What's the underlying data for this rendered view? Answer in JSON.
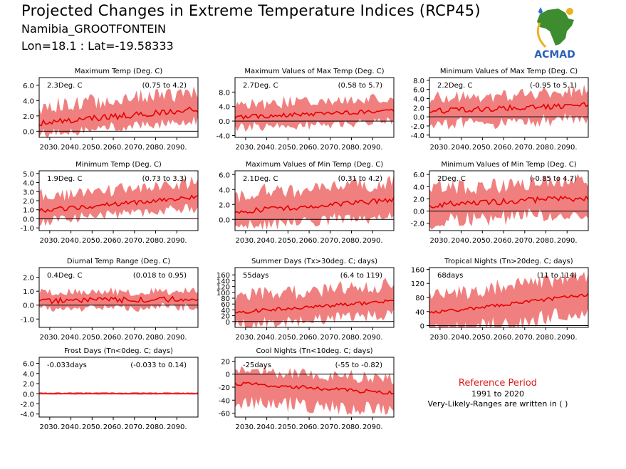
{
  "header": {
    "title": "Projected Changes in Extreme Temperature Indices (RCP45)",
    "location": "Namibia_GROOTFONTEIN",
    "coords": "Lon=18.1 : Lat=-19.58333"
  },
  "logo": {
    "text": "ACMAD",
    "icon": "africa-map-logo"
  },
  "reference": {
    "title": "Reference Period",
    "years": "1991 to 2020",
    "note": "Very-Likely-Ranges are written in ( )"
  },
  "colors": {
    "band": "#f08080",
    "line": "#e60000",
    "zero": "#000000",
    "reference_title": "#d81e1e"
  },
  "chart_data": [
    {
      "id": "max-temp",
      "type": "area",
      "title": "Maximum Temp (Deg. C)",
      "value": "2.3Deg. C",
      "range": "(0.75 to 4.2)",
      "x_range": [
        2025,
        2100
      ],
      "x_ticks": [
        "2030.",
        "2040.",
        "2050.",
        "2060.",
        "2070.",
        "2080.",
        "2090."
      ],
      "ylim": [
        -0.8,
        7.0
      ],
      "y_ticks": [
        "0.0",
        "2.0",
        "4.0",
        "6.0"
      ],
      "start": 1.0,
      "end": 2.9,
      "upper_offset": 2.2,
      "lower_offset": 1.4,
      "noise": 0.4
    },
    {
      "id": "max-of-max",
      "type": "area",
      "title": "Maximum Values of Max Temp (Deg. C)",
      "value": "2.7Deg. C",
      "range": "(0.58 to 5.7)",
      "x_range": [
        2025,
        2100
      ],
      "x_ticks": [
        "2030.",
        "2040.",
        "2050.",
        "2060.",
        "2070.",
        "2080.",
        "2090."
      ],
      "ylim": [
        -4.5,
        12.0
      ],
      "y_ticks": [
        "-4.0",
        "0.0",
        "4.0",
        "8.0"
      ],
      "start": 1.0,
      "end": 3.0,
      "upper_offset": 3.5,
      "lower_offset": 3.0,
      "noise": 0.6
    },
    {
      "id": "min-of-max",
      "type": "area",
      "title": "Minimum Values of Max Temp (Deg. C)",
      "value": "2.2Deg. C",
      "range": "(-0.95 to 5.1)",
      "x_range": [
        2025,
        2100
      ],
      "x_ticks": [
        "2030.",
        "2040.",
        "2050.",
        "2060.",
        "2070.",
        "2080.",
        "2090."
      ],
      "ylim": [
        -4.5,
        8.6
      ],
      "y_ticks": [
        "-4.0",
        "-2.0",
        "0.0",
        "2.0",
        "4.0",
        "6.0",
        "8.0"
      ],
      "start": 1.2,
      "end": 2.6,
      "upper_offset": 3.0,
      "lower_offset": 3.0,
      "noise": 0.6
    },
    {
      "id": "min-temp",
      "type": "area",
      "title": "Minimum Temp (Deg. C)",
      "value": "1.9Deg. C",
      "range": "(0.73 to 3.3)",
      "x_range": [
        2025,
        2100
      ],
      "x_ticks": [
        "2030.",
        "2040.",
        "2050.",
        "2060.",
        "2070.",
        "2080.",
        "2090."
      ],
      "ylim": [
        -1.3,
        5.3
      ],
      "y_ticks": [
        "-1.0",
        "0.0",
        "1.0",
        "2.0",
        "3.0",
        "4.0",
        "5.0"
      ],
      "start": 0.9,
      "end": 2.4,
      "upper_offset": 1.6,
      "lower_offset": 1.2,
      "noise": 0.25
    },
    {
      "id": "max-of-min",
      "type": "area",
      "title": "Maximum Values of Min Temp (Deg. C)",
      "value": "2.1Deg. C",
      "range": "(0.31 to 4.2)",
      "x_range": [
        2025,
        2100
      ],
      "x_ticks": [
        "2030.",
        "2040.",
        "2050.",
        "2060.",
        "2070.",
        "2080.",
        "2090."
      ],
      "ylim": [
        -1.5,
        6.5
      ],
      "y_ticks": [
        "0.0",
        "2.0",
        "4.0",
        "6.0"
      ],
      "start": 1.0,
      "end": 2.6,
      "upper_offset": 2.3,
      "lower_offset": 2.0,
      "noise": 0.35
    },
    {
      "id": "min-of-min",
      "type": "area",
      "title": "Minimum Values of Min Temp (Deg. C)",
      "value": "2Deg. C",
      "range": "(-0.85 to 4.7)",
      "x_range": [
        2025,
        2100
      ],
      "x_ticks": [
        "2030.",
        "2040.",
        "2050.",
        "2060.",
        "2070.",
        "2080.",
        "2090."
      ],
      "ylim": [
        -3.2,
        6.6
      ],
      "y_ticks": [
        "-2.0",
        "0.0",
        "2.0",
        "4.0",
        "6.0"
      ],
      "start": 1.0,
      "end": 2.2,
      "upper_offset": 2.8,
      "lower_offset": 2.7,
      "noise": 0.5
    },
    {
      "id": "dtr",
      "type": "area",
      "title": "Diurnal Temp Range (Deg. C)",
      "value": "0.4Deg. C",
      "range": "(0.018 to 0.95)",
      "x_range": [
        2025,
        2100
      ],
      "x_ticks": [
        "2030.",
        "2040.",
        "2050.",
        "2060.",
        "2070.",
        "2080.",
        "2090."
      ],
      "ylim": [
        -1.6,
        2.7
      ],
      "y_ticks": [
        "-1.0",
        "0.0",
        "1.0",
        "2.0"
      ],
      "start": 0.3,
      "end": 0.45,
      "upper_offset": 0.6,
      "lower_offset": 0.55,
      "noise": 0.2
    },
    {
      "id": "summer-days",
      "type": "area",
      "title": "Summer Days (Tx>30deg. C; days)",
      "value": "55days",
      "range": "(6.4 to 119)",
      "x_range": [
        2025,
        2100
      ],
      "x_ticks": [
        "2030.",
        "2040.",
        "2050.",
        "2060.",
        "2070.",
        "2080.",
        "2090."
      ],
      "ylim": [
        -20,
        185
      ],
      "y_ticks": [
        "0",
        "20",
        "40",
        "60",
        "80",
        "100",
        "120",
        "140",
        "160"
      ],
      "start": 32,
      "end": 70,
      "upper_offset": 55,
      "lower_offset": 45,
      "noise": 6
    },
    {
      "id": "tropical-nights",
      "type": "area",
      "title": "Tropical Nights (Tn>20deg. C; days)",
      "value": "68days",
      "range": "(11 to 114)",
      "x_range": [
        2025,
        2100
      ],
      "x_ticks": [
        "2030.",
        "2040.",
        "2050.",
        "2060.",
        "2070.",
        "2080.",
        "2090."
      ],
      "ylim": [
        -5,
        165
      ],
      "y_ticks": [
        "0",
        "40",
        "80",
        "120",
        "160"
      ],
      "start": 35,
      "end": 88,
      "upper_offset": 50,
      "lower_offset": 55,
      "noise": 5
    },
    {
      "id": "frost-days",
      "type": "area",
      "title": "Frost Days (Tn<0deg. C; days)",
      "value": "-0.033days",
      "range": "(-0.033 to 0.14)",
      "x_range": [
        2025,
        2100
      ],
      "x_ticks": [
        "2030.",
        "2040.",
        "2050.",
        "2060.",
        "2070.",
        "2080.",
        "2090."
      ],
      "ylim": [
        -4.6,
        7.2
      ],
      "y_ticks": [
        "-4.0",
        "-2.0",
        "0.0",
        "2.0",
        "4.0",
        "6.0"
      ],
      "start": 0.0,
      "end": 0.0,
      "upper_offset": 0.25,
      "lower_offset": 0.12,
      "noise": 0.0
    },
    {
      "id": "cool-nights",
      "type": "area",
      "title": "Cool Nights (Tn<10deg. C; days)",
      "value": "-25days",
      "range": "(-55 to -0.82)",
      "x_range": [
        2025,
        2100
      ],
      "x_ticks": [
        "2030.",
        "2040.",
        "2050.",
        "2060.",
        "2070.",
        "2080.",
        "2090."
      ],
      "ylim": [
        -66,
        26
      ],
      "y_ticks": [
        "-60",
        "-40",
        "-20",
        "0",
        "20"
      ],
      "start": -14,
      "end": -29,
      "upper_offset": 22,
      "lower_offset": 28,
      "noise": 3
    }
  ]
}
